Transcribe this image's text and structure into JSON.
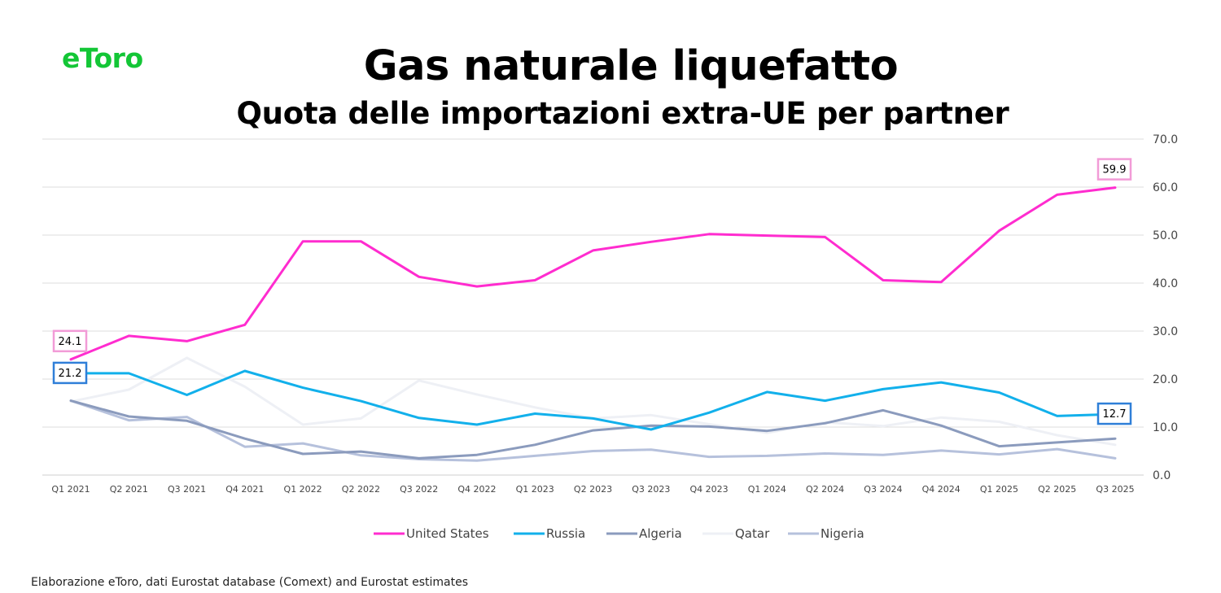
{
  "header": {
    "logo_text": "eToro",
    "title": "Gas naturale liquefatto",
    "subtitle": "Quota delle importazioni extra-UE per partner"
  },
  "footer": {
    "source": "Elaborazione eToro, dati Eurostat database (Comext) and Eurostat estimates"
  },
  "colors": {
    "logo": "#13c636"
  },
  "chart_data": {
    "type": "line",
    "title": "Gas naturale liquefatto",
    "subtitle": "Quota delle importazioni extra-UE per partner",
    "xlabel": "",
    "ylabel": "",
    "ylim": [
      0,
      70
    ],
    "yticks": [
      "0.0",
      "10.0",
      "20.0",
      "30.0",
      "40.0",
      "50.0",
      "60.0",
      "70.0"
    ],
    "y_axis_side": "right",
    "grid": true,
    "legend_position": "bottom",
    "categories": [
      "Q1 2021",
      "Q2 2021",
      "Q3 2021",
      "Q4 2021",
      "Q1 2022",
      "Q2 2022",
      "Q3 2022",
      "Q4 2022",
      "Q1 2023",
      "Q2 2023",
      "Q3 2023",
      "Q4 2023",
      "Q1 2024",
      "Q2 2024",
      "Q3 2024",
      "Q4 2024",
      "Q1 2025",
      "Q2 2025",
      "Q3 2025"
    ],
    "series": [
      {
        "name": "United States",
        "color": "#ff2ccf",
        "values": [
          24.1,
          29.0,
          27.9,
          31.3,
          48.7,
          48.7,
          41.3,
          39.3,
          40.6,
          46.8,
          48.6,
          50.2,
          49.9,
          49.6,
          40.6,
          40.2,
          50.9,
          58.4,
          59.9
        ]
      },
      {
        "name": "Russia",
        "color": "#12b0eb",
        "values": [
          21.2,
          21.2,
          16.7,
          21.7,
          18.2,
          15.4,
          11.9,
          10.5,
          12.8,
          11.8,
          9.5,
          13.0,
          17.3,
          15.5,
          17.9,
          19.3,
          17.2,
          12.3,
          12.7
        ]
      },
      {
        "name": "Algeria",
        "color": "#8b9bbd",
        "values": [
          15.5,
          12.2,
          11.3,
          7.6,
          4.4,
          4.9,
          3.5,
          4.2,
          6.3,
          9.3,
          10.3,
          10.1,
          9.2,
          10.8,
          13.5,
          10.3,
          6.0,
          6.8,
          7.6
        ]
      },
      {
        "name": "Qatar",
        "color": "#eef0f5",
        "values": [
          15.3,
          17.8,
          24.4,
          18.4,
          10.5,
          11.8,
          19.7,
          16.8,
          14.1,
          11.8,
          12.5,
          10.6,
          8.8,
          11.0,
          10.2,
          12.0,
          11.1,
          8.3,
          6.3
        ]
      },
      {
        "name": "Nigeria",
        "color": "#b6c1dc",
        "values": [
          15.5,
          11.4,
          12.1,
          5.9,
          6.6,
          4.1,
          3.3,
          3.0,
          4.0,
          5.0,
          5.3,
          3.8,
          4.0,
          4.5,
          4.2,
          5.1,
          4.3,
          5.4,
          3.5
        ]
      }
    ],
    "data_labels": [
      {
        "series": "United States",
        "category": "Q1 2021",
        "text": "24.1",
        "border": "#f29bd7"
      },
      {
        "series": "Russia",
        "category": "Q1 2021",
        "text": "21.2",
        "border": "#2f7fd8"
      },
      {
        "series": "United States",
        "category": "Q3 2025",
        "text": "59.9",
        "border": "#f29bd7"
      },
      {
        "series": "Russia",
        "category": "Q3 2025",
        "text": "12.7",
        "border": "#2f7fd8"
      }
    ]
  }
}
